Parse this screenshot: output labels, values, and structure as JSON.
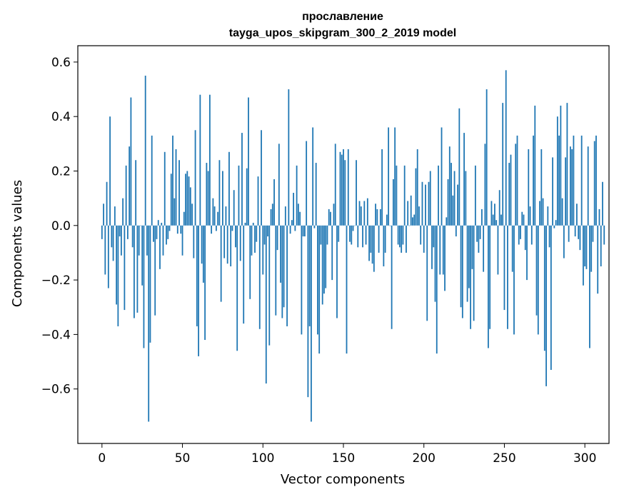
{
  "chart_data": {
    "type": "bar",
    "title_line1": "прославление",
    "title_line2": "tayga_upos_skipgram_300_2_2019 model",
    "xlabel": "Vector components",
    "ylabel": "Components values",
    "xlim": [
      -15,
      315
    ],
    "ylim": [
      -0.8,
      0.66
    ],
    "x_ticks": [
      0,
      50,
      100,
      150,
      200,
      250,
      300
    ],
    "x_tick_labels": [
      "0",
      "50",
      "100",
      "150",
      "200",
      "250",
      "300"
    ],
    "y_ticks": [
      -0.6,
      -0.4,
      -0.2,
      0.0,
      0.2,
      0.4,
      0.6
    ],
    "y_tick_labels": [
      "−0.6",
      "−0.4",
      "−0.2",
      "0.0",
      "0.2",
      "0.4",
      "0.6"
    ],
    "bar_color": "#1f77b4",
    "grid": false,
    "values": [
      -0.05,
      0.08,
      -0.18,
      0.16,
      -0.23,
      0.4,
      -0.08,
      -0.13,
      0.07,
      -0.29,
      -0.37,
      -0.04,
      -0.11,
      0.1,
      -0.31,
      0.22,
      -0.05,
      0.29,
      0.47,
      -0.08,
      -0.34,
      0.24,
      -0.32,
      -0.11,
      0.0,
      -0.22,
      -0.45,
      0.55,
      -0.11,
      -0.72,
      -0.43,
      0.33,
      -0.06,
      -0.33,
      -0.05,
      0.02,
      -0.16,
      0.01,
      -0.11,
      0.27,
      -0.07,
      -0.05,
      -0.02,
      0.19,
      0.33,
      0.1,
      0.28,
      -0.03,
      0.24,
      -0.03,
      -0.11,
      0.05,
      0.19,
      0.2,
      0.18,
      0.14,
      0.08,
      -0.12,
      0.35,
      -0.37,
      -0.48,
      0.48,
      -0.14,
      -0.21,
      -0.42,
      0.23,
      0.2,
      0.48,
      -0.03,
      0.1,
      0.07,
      -0.02,
      0.05,
      0.24,
      -0.28,
      0.2,
      -0.12,
      0.07,
      -0.14,
      0.27,
      -0.15,
      -0.02,
      0.13,
      -0.08,
      -0.46,
      0.22,
      -0.13,
      0.34,
      -0.36,
      0.01,
      0.21,
      0.47,
      -0.27,
      -0.11,
      0.01,
      -0.1,
      -0.06,
      0.18,
      -0.38,
      0.35,
      -0.18,
      -0.07,
      -0.58,
      -0.04,
      -0.44,
      0.06,
      0.08,
      0.17,
      -0.33,
      -0.09,
      0.3,
      -0.21,
      -0.34,
      -0.3,
      0.07,
      -0.37,
      0.5,
      -0.03,
      0.02,
      0.12,
      -0.02,
      0.22,
      0.08,
      0.05,
      -0.4,
      -0.04,
      -0.04,
      0.31,
      -0.63,
      -0.37,
      -0.72,
      0.36,
      -0.01,
      0.23,
      -0.4,
      -0.47,
      -0.07,
      -0.29,
      -0.25,
      -0.23,
      -0.07,
      0.06,
      0.05,
      -0.2,
      0.08,
      0.3,
      -0.34,
      -0.06,
      0.27,
      0.26,
      0.28,
      0.24,
      -0.47,
      0.28,
      -0.06,
      -0.07,
      -0.02,
      0.0,
      0.24,
      -0.08,
      0.09,
      0.07,
      -0.08,
      0.09,
      -0.07,
      0.1,
      -0.13,
      -0.1,
      -0.14,
      -0.17,
      0.08,
      0.06,
      -0.1,
      0.06,
      0.28,
      -0.15,
      -0.1,
      0.04,
      0.36,
      0.0,
      -0.38,
      0.17,
      0.36,
      0.22,
      -0.07,
      -0.08,
      -0.1,
      -0.07,
      0.22,
      -0.1,
      0.09,
      0.0,
      0.11,
      0.03,
      0.04,
      0.21,
      0.28,
      0.07,
      -0.07,
      0.16,
      -0.1,
      0.15,
      -0.35,
      0.16,
      0.2,
      -0.16,
      -0.08,
      -0.28,
      -0.47,
      0.22,
      -0.18,
      0.36,
      -0.18,
      -0.24,
      0.03,
      0.17,
      0.29,
      0.23,
      0.11,
      0.2,
      -0.04,
      0.15,
      0.43,
      -0.3,
      -0.34,
      0.34,
      0.2,
      -0.28,
      -0.23,
      -0.38,
      -0.16,
      -0.35,
      0.22,
      -0.06,
      -0.1,
      -0.05,
      0.06,
      -0.17,
      0.3,
      0.5,
      -0.45,
      -0.38,
      0.09,
      0.04,
      0.08,
      0.02,
      -0.18,
      0.13,
      0.04,
      0.45,
      -0.31,
      0.57,
      -0.38,
      0.23,
      0.26,
      -0.17,
      -0.4,
      0.3,
      0.33,
      -0.07,
      -0.05,
      0.05,
      0.04,
      -0.09,
      -0.2,
      0.28,
      0.07,
      -0.07,
      0.33,
      0.44,
      -0.33,
      -0.4,
      0.09,
      0.28,
      0.1,
      -0.46,
      -0.59,
      0.07,
      -0.08,
      -0.53,
      0.25,
      -0.01,
      0.02,
      0.4,
      0.33,
      0.44,
      0.1,
      -0.12,
      0.25,
      0.45,
      -0.06,
      0.29,
      0.28,
      0.33,
      -0.04,
      0.08,
      -0.05,
      -0.09,
      0.33,
      -0.22,
      -0.15,
      -0.16,
      0.29,
      -0.45,
      -0.17,
      -0.06,
      0.31,
      0.33,
      -0.25,
      0.06,
      -0.15,
      0.16,
      -0.07
    ]
  }
}
